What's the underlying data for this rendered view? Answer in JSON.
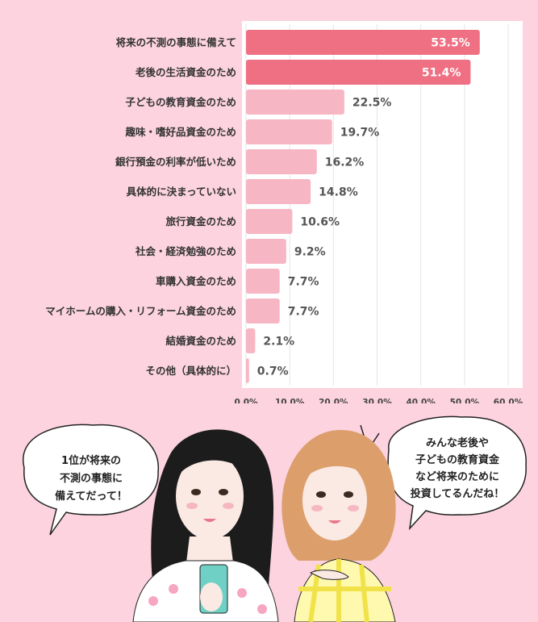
{
  "chart_data": {
    "type": "bar",
    "orientation": "horizontal",
    "categories": [
      "将来の不測の事態に備えて",
      "老後の生活資金のため",
      "子どもの教育資金のため",
      "趣味・嗜好品資金のため",
      "銀行預金の利率が低いため",
      "具体的に決まっていない",
      "旅行資金のため",
      "社会・経済勉強のため",
      "車購入資金のため",
      "マイホームの購入・リフォーム資金のため",
      "結婚資金のため",
      "その他（具体的に）"
    ],
    "values": [
      53.5,
      51.4,
      22.5,
      19.7,
      16.2,
      14.8,
      10.6,
      9.2,
      7.7,
      7.7,
      2.1,
      0.7
    ],
    "value_labels": [
      "53.5%",
      "51.4%",
      "22.5%",
      "19.7%",
      "16.2%",
      "14.8%",
      "10.6%",
      "9.2%",
      "7.7%",
      "7.7%",
      "2.1%",
      "0.7%"
    ],
    "xlim": [
      0,
      60
    ],
    "xticks": [
      0,
      10,
      20,
      30,
      40,
      50,
      60
    ],
    "xtick_labels": [
      "0.0%",
      "10.0%",
      "20.0%",
      "30.0%",
      "40.0%",
      "50.0%",
      "60.0%"
    ],
    "grid": true,
    "colors": {
      "highlight": "#ef6f83",
      "normal": "#f7b6c3",
      "inside_label": "#ffffff",
      "outside_label": "#555555",
      "grid": "#e6e6e6"
    },
    "highlight_count": 2
  },
  "bubbles": {
    "left": [
      "1位が将来の",
      "不測の事態に",
      "備えてだって！"
    ],
    "right": [
      "みんな老後や",
      "子どもの教育資金",
      "など将来のために",
      "投資してるんだね！"
    ]
  }
}
